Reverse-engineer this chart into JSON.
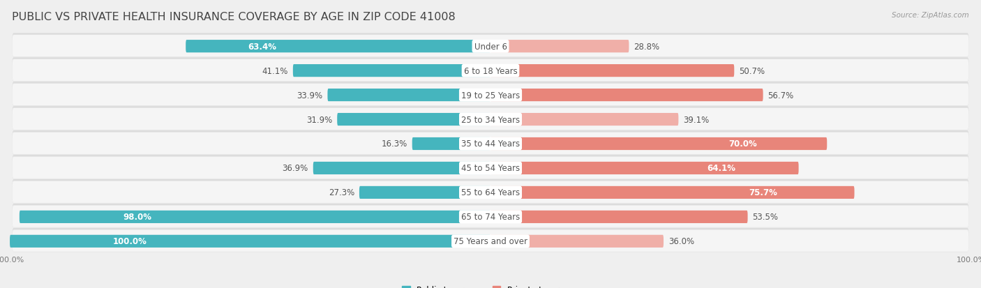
{
  "title": "PUBLIC VS PRIVATE HEALTH INSURANCE COVERAGE BY AGE IN ZIP CODE 41008",
  "source": "Source: ZipAtlas.com",
  "categories": [
    "Under 6",
    "6 to 18 Years",
    "19 to 25 Years",
    "25 to 34 Years",
    "35 to 44 Years",
    "45 to 54 Years",
    "55 to 64 Years",
    "65 to 74 Years",
    "75 Years and over"
  ],
  "public_values": [
    63.4,
    41.1,
    33.9,
    31.9,
    16.3,
    36.9,
    27.3,
    98.0,
    100.0
  ],
  "private_values": [
    28.8,
    50.7,
    56.7,
    39.1,
    70.0,
    64.1,
    75.7,
    53.5,
    36.0
  ],
  "public_color": "#45B5BE",
  "private_color": "#E8857A",
  "private_color_light": "#F0AFA8",
  "bg_color": "#EFEFEF",
  "row_bg": "#F5F5F5",
  "row_shadow": "#DCDCDC",
  "bar_height": 0.52,
  "title_fontsize": 11.5,
  "label_fontsize": 8.5,
  "value_fontsize": 8.5,
  "tick_fontsize": 8,
  "legend_fontsize": 8.5,
  "center_label_color": "#555555",
  "outside_label_color": "#555555"
}
